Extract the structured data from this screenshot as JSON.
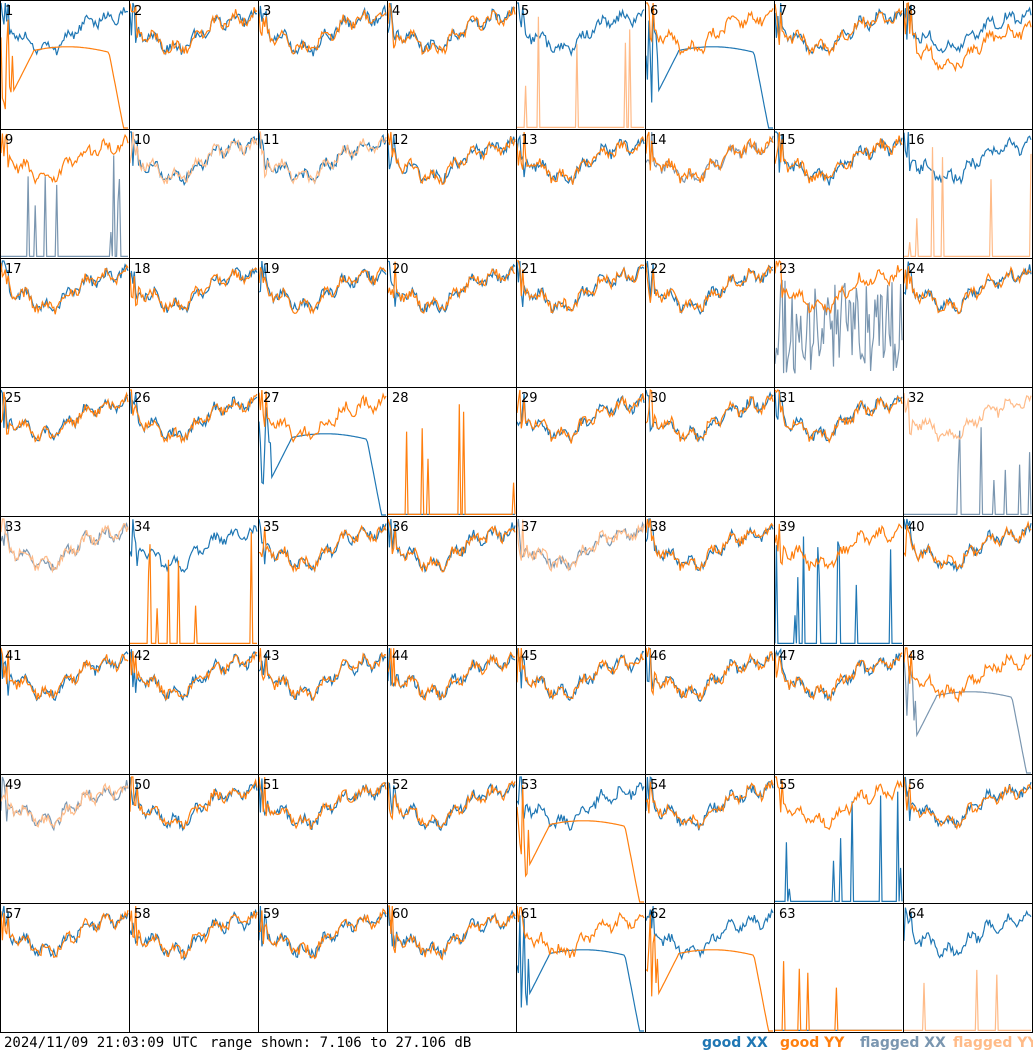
{
  "footer": {
    "timestamp": "2024/11/09 21:03:09 UTC",
    "range_text": "range shown: 7.106 to 27.106 dB"
  },
  "legend": {
    "good_xx": "good XX",
    "good_yy": "good YY",
    "flagged_xx": "flagged XX",
    "flagged_yy": "flagged YY"
  },
  "colors": {
    "good_xx": "#1f77b4",
    "good_yy": "#ff7f0e",
    "flagged_xx": "#7a96b0",
    "flagged_yy": "#ffbb88",
    "grid": "#000000"
  },
  "chart_data": {
    "type": "line",
    "grid": {
      "rows": 8,
      "cols": 8
    },
    "ylim": [
      7.106,
      27.106
    ],
    "y_unit": "dB",
    "panels": [
      {
        "id": 1,
        "xx": "good",
        "yy": "good",
        "xx_shape": "normal",
        "yy_shape": "bad_decay"
      },
      {
        "id": 2,
        "xx": "good",
        "yy": "good",
        "xx_shape": "normal",
        "yy_shape": "normal"
      },
      {
        "id": 3,
        "xx": "good",
        "yy": "good",
        "xx_shape": "normal",
        "yy_shape": "normal"
      },
      {
        "id": 4,
        "xx": "good",
        "yy": "good",
        "xx_shape": "normal",
        "yy_shape": "normal"
      },
      {
        "id": 5,
        "xx": "good",
        "yy": "flagged",
        "xx_shape": "normal",
        "yy_shape": "spikes"
      },
      {
        "id": 6,
        "xx": "good",
        "yy": "good",
        "xx_shape": "bad_decay",
        "yy_shape": "normal"
      },
      {
        "id": 7,
        "xx": "good",
        "yy": "good",
        "xx_shape": "normal",
        "yy_shape": "normal"
      },
      {
        "id": 8,
        "xx": "good",
        "yy": "good",
        "xx_shape": "normal",
        "yy_shape": "noisy_low"
      },
      {
        "id": 9,
        "xx": "flagged",
        "yy": "good",
        "xx_shape": "spikes",
        "yy_shape": "normal"
      },
      {
        "id": 10,
        "xx": "good",
        "yy": "flagged",
        "xx_shape": "normal",
        "yy_shape": "normal"
      },
      {
        "id": 11,
        "xx": "good",
        "yy": "flagged",
        "xx_shape": "normal",
        "yy_shape": "normal"
      },
      {
        "id": 12,
        "xx": "good",
        "yy": "good",
        "xx_shape": "normal",
        "yy_shape": "normal"
      },
      {
        "id": 13,
        "xx": "good",
        "yy": "good",
        "xx_shape": "normal",
        "yy_shape": "normal"
      },
      {
        "id": 14,
        "xx": "flagged",
        "yy": "good",
        "xx_shape": "normal",
        "yy_shape": "normal"
      },
      {
        "id": 15,
        "xx": "good",
        "yy": "good",
        "xx_shape": "normal",
        "yy_shape": "normal"
      },
      {
        "id": 16,
        "xx": "good",
        "yy": "flagged",
        "xx_shape": "normal",
        "yy_shape": "spikes"
      },
      {
        "id": 17,
        "xx": "good",
        "yy": "good",
        "xx_shape": "normal",
        "yy_shape": "normal"
      },
      {
        "id": 18,
        "xx": "good",
        "yy": "good",
        "xx_shape": "normal",
        "yy_shape": "normal"
      },
      {
        "id": 19,
        "xx": "good",
        "yy": "good",
        "xx_shape": "normal",
        "yy_shape": "normal"
      },
      {
        "id": 20,
        "xx": "good",
        "yy": "good",
        "xx_shape": "normal",
        "yy_shape": "normal"
      },
      {
        "id": 21,
        "xx": "good",
        "yy": "good",
        "xx_shape": "normal",
        "yy_shape": "normal"
      },
      {
        "id": 22,
        "xx": "good",
        "yy": "good",
        "xx_shape": "normal",
        "yy_shape": "normal"
      },
      {
        "id": 23,
        "xx": "flagged",
        "yy": "good",
        "xx_shape": "noisy_wide",
        "yy_shape": "normal"
      },
      {
        "id": 24,
        "xx": "good",
        "yy": "good",
        "xx_shape": "normal",
        "yy_shape": "normal"
      },
      {
        "id": 25,
        "xx": "good",
        "yy": "good",
        "xx_shape": "normal",
        "yy_shape": "normal"
      },
      {
        "id": 26,
        "xx": "good",
        "yy": "good",
        "xx_shape": "normal",
        "yy_shape": "normal"
      },
      {
        "id": 27,
        "xx": "good",
        "yy": "good",
        "xx_shape": "bad_decay",
        "yy_shape": "normal"
      },
      {
        "id": 28,
        "xx": "good",
        "yy": "good",
        "xx_shape": "dead",
        "yy_shape": "spikes"
      },
      {
        "id": 29,
        "xx": "good",
        "yy": "good",
        "xx_shape": "normal",
        "yy_shape": "normal"
      },
      {
        "id": 30,
        "xx": "good",
        "yy": "good",
        "xx_shape": "normal",
        "yy_shape": "normal"
      },
      {
        "id": 31,
        "xx": "good",
        "yy": "good",
        "xx_shape": "normal",
        "yy_shape": "normal"
      },
      {
        "id": 32,
        "xx": "flagged",
        "yy": "flagged",
        "xx_shape": "spikes",
        "yy_shape": "normal"
      },
      {
        "id": 33,
        "xx": "flagged",
        "yy": "flagged",
        "xx_shape": "normal",
        "yy_shape": "normal"
      },
      {
        "id": 34,
        "xx": "good",
        "yy": "good",
        "xx_shape": "normal",
        "yy_shape": "spikes"
      },
      {
        "id": 35,
        "xx": "good",
        "yy": "good",
        "xx_shape": "normal",
        "yy_shape": "normal"
      },
      {
        "id": 36,
        "xx": "good",
        "yy": "good",
        "xx_shape": "normal",
        "yy_shape": "normal"
      },
      {
        "id": 37,
        "xx": "flagged",
        "yy": "flagged",
        "xx_shape": "normal",
        "yy_shape": "normal"
      },
      {
        "id": 38,
        "xx": "good",
        "yy": "good",
        "xx_shape": "normal",
        "yy_shape": "normal"
      },
      {
        "id": 39,
        "xx": "good",
        "yy": "good",
        "xx_shape": "spikes",
        "yy_shape": "normal"
      },
      {
        "id": 40,
        "xx": "good",
        "yy": "good",
        "xx_shape": "normal",
        "yy_shape": "normal"
      },
      {
        "id": 41,
        "xx": "good",
        "yy": "good",
        "xx_shape": "normal",
        "yy_shape": "normal"
      },
      {
        "id": 42,
        "xx": "good",
        "yy": "good",
        "xx_shape": "normal",
        "yy_shape": "normal"
      },
      {
        "id": 43,
        "xx": "good",
        "yy": "good",
        "xx_shape": "normal",
        "yy_shape": "normal"
      },
      {
        "id": 44,
        "xx": "good",
        "yy": "good",
        "xx_shape": "normal",
        "yy_shape": "normal"
      },
      {
        "id": 45,
        "xx": "good",
        "yy": "good",
        "xx_shape": "normal",
        "yy_shape": "normal"
      },
      {
        "id": 46,
        "xx": "good",
        "yy": "good",
        "xx_shape": "normal",
        "yy_shape": "normal"
      },
      {
        "id": 47,
        "xx": "good",
        "yy": "good",
        "xx_shape": "normal",
        "yy_shape": "normal"
      },
      {
        "id": 48,
        "xx": "flagged",
        "yy": "good",
        "xx_shape": "bad_decay",
        "yy_shape": "normal"
      },
      {
        "id": 49,
        "xx": "flagged",
        "yy": "flagged",
        "xx_shape": "normal",
        "yy_shape": "normal"
      },
      {
        "id": 50,
        "xx": "good",
        "yy": "good",
        "xx_shape": "normal",
        "yy_shape": "normal"
      },
      {
        "id": 51,
        "xx": "good",
        "yy": "good",
        "xx_shape": "normal",
        "yy_shape": "normal"
      },
      {
        "id": 52,
        "xx": "good",
        "yy": "good",
        "xx_shape": "normal",
        "yy_shape": "normal"
      },
      {
        "id": 53,
        "xx": "good",
        "yy": "good",
        "xx_shape": "normal",
        "yy_shape": "bad_decay"
      },
      {
        "id": 54,
        "xx": "good",
        "yy": "good",
        "xx_shape": "normal",
        "yy_shape": "normal"
      },
      {
        "id": 55,
        "xx": "good",
        "yy": "good",
        "xx_shape": "spikes",
        "yy_shape": "normal"
      },
      {
        "id": 56,
        "xx": "good",
        "yy": "good",
        "xx_shape": "normal",
        "yy_shape": "normal"
      },
      {
        "id": 57,
        "xx": "good",
        "yy": "good",
        "xx_shape": "normal",
        "yy_shape": "normal"
      },
      {
        "id": 58,
        "xx": "good",
        "yy": "good",
        "xx_shape": "normal",
        "yy_shape": "normal"
      },
      {
        "id": 59,
        "xx": "good",
        "yy": "good",
        "xx_shape": "normal",
        "yy_shape": "normal"
      },
      {
        "id": 60,
        "xx": "good",
        "yy": "good",
        "xx_shape": "normal",
        "yy_shape": "normal"
      },
      {
        "id": 61,
        "xx": "good",
        "yy": "good",
        "xx_shape": "bad_decay",
        "yy_shape": "normal"
      },
      {
        "id": 62,
        "xx": "good",
        "yy": "good",
        "xx_shape": "normal",
        "yy_shape": "bad_decay"
      },
      {
        "id": 63,
        "xx": "good",
        "yy": "good",
        "xx_shape": "dead",
        "yy_shape": "spikes"
      },
      {
        "id": 64,
        "xx": "good",
        "yy": "flagged",
        "xx_shape": "normal",
        "yy_shape": "spikes"
      }
    ]
  }
}
